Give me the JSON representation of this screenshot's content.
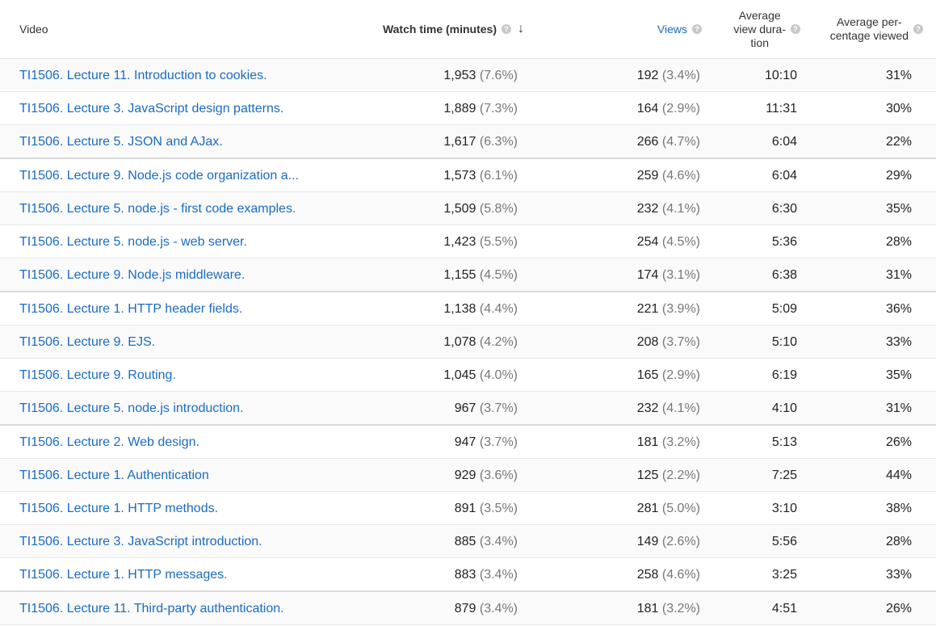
{
  "header": {
    "video": "Video",
    "watch_time": "Watch time (minutes)",
    "views": "Views",
    "avg_duration_l1": "Average",
    "avg_duration_l2": "view dura-",
    "avg_duration_l3": "tion",
    "avg_pct_l1": "Average per-",
    "avg_pct_l2": "centage viewed",
    "help_glyph": "?",
    "sort_glyph": "↓"
  },
  "colors": {
    "link": "#1a6bc4",
    "muted": "#777777"
  },
  "rows": [
    {
      "title": "TI1506. Lecture 11. Introduction to cookies.",
      "watch": "1,953",
      "watch_pct": "(7.6%)",
      "views": "192",
      "views_pct": "(3.4%)",
      "duration": "10:10",
      "pct_viewed": "31%"
    },
    {
      "title": "TI1506. Lecture 3. JavaScript design patterns.",
      "watch": "1,889",
      "watch_pct": "(7.3%)",
      "views": "164",
      "views_pct": "(2.9%)",
      "duration": "11:31",
      "pct_viewed": "30%"
    },
    {
      "title": "TI1506. Lecture 5. JSON and AJax.",
      "watch": "1,617",
      "watch_pct": "(6.3%)",
      "views": "266",
      "views_pct": "(4.7%)",
      "duration": "6:04",
      "pct_viewed": "22%"
    },
    {
      "title": "TI1506. Lecture 9. Node.js code organization a...",
      "watch": "1,573",
      "watch_pct": "(6.1%)",
      "views": "259",
      "views_pct": "(4.6%)",
      "duration": "6:04",
      "pct_viewed": "29%"
    },
    {
      "title": "TI1506. Lecture 5. node.js - first code examples.",
      "watch": "1,509",
      "watch_pct": "(5.8%)",
      "views": "232",
      "views_pct": "(4.1%)",
      "duration": "6:30",
      "pct_viewed": "35%"
    },
    {
      "title": "TI1506. Lecture 5. node.js - web server.",
      "watch": "1,423",
      "watch_pct": "(5.5%)",
      "views": "254",
      "views_pct": "(4.5%)",
      "duration": "5:36",
      "pct_viewed": "28%"
    },
    {
      "title": "TI1506. Lecture 9. Node.js middleware.",
      "watch": "1,155",
      "watch_pct": "(4.5%)",
      "views": "174",
      "views_pct": "(3.1%)",
      "duration": "6:38",
      "pct_viewed": "31%"
    },
    {
      "title": "TI1506. Lecture 1. HTTP header fields.",
      "watch": "1,138",
      "watch_pct": "(4.4%)",
      "views": "221",
      "views_pct": "(3.9%)",
      "duration": "5:09",
      "pct_viewed": "36%"
    },
    {
      "title": "TI1506. Lecture 9. EJS.",
      "watch": "1,078",
      "watch_pct": "(4.2%)",
      "views": "208",
      "views_pct": "(3.7%)",
      "duration": "5:10",
      "pct_viewed": "33%"
    },
    {
      "title": "TI1506. Lecture 9. Routing.",
      "watch": "1,045",
      "watch_pct": "(4.0%)",
      "views": "165",
      "views_pct": "(2.9%)",
      "duration": "6:19",
      "pct_viewed": "35%"
    },
    {
      "title": "TI1506. Lecture 5. node.js introduction.",
      "watch": "967",
      "watch_pct": "(3.7%)",
      "views": "232",
      "views_pct": "(4.1%)",
      "duration": "4:10",
      "pct_viewed": "31%"
    },
    {
      "title": "TI1506. Lecture 2. Web design.",
      "watch": "947",
      "watch_pct": "(3.7%)",
      "views": "181",
      "views_pct": "(3.2%)",
      "duration": "5:13",
      "pct_viewed": "26%"
    },
    {
      "title": "TI1506. Lecture 1. Authentication",
      "watch": "929",
      "watch_pct": "(3.6%)",
      "views": "125",
      "views_pct": "(2.2%)",
      "duration": "7:25",
      "pct_viewed": "44%"
    },
    {
      "title": "TI1506. Lecture 1. HTTP methods.",
      "watch": "891",
      "watch_pct": "(3.5%)",
      "views": "281",
      "views_pct": "(5.0%)",
      "duration": "3:10",
      "pct_viewed": "38%"
    },
    {
      "title": "TI1506. Lecture 3. JavaScript introduction.",
      "watch": "885",
      "watch_pct": "(3.4%)",
      "views": "149",
      "views_pct": "(2.6%)",
      "duration": "5:56",
      "pct_viewed": "28%"
    },
    {
      "title": "TI1506. Lecture 1. HTTP messages.",
      "watch": "883",
      "watch_pct": "(3.4%)",
      "views": "258",
      "views_pct": "(4.6%)",
      "duration": "3:25",
      "pct_viewed": "33%"
    },
    {
      "title": "TI1506. Lecture 11. Third-party authentication.",
      "watch": "879",
      "watch_pct": "(3.4%)",
      "views": "181",
      "views_pct": "(3.2%)",
      "duration": "4:51",
      "pct_viewed": "26%"
    }
  ]
}
